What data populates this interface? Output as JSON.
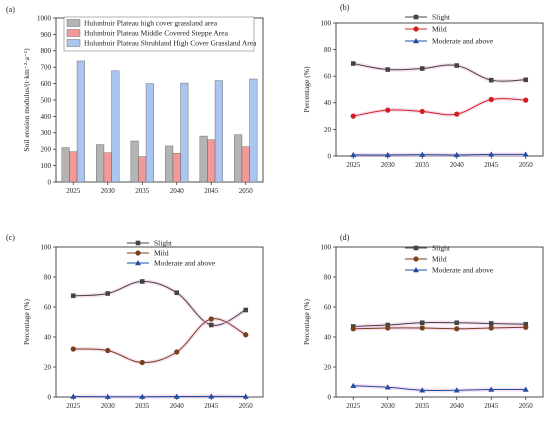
{
  "chart_data": [
    {
      "panel": "(a)",
      "type": "bar",
      "categories": [
        "2025",
        "2030",
        "2035",
        "2040",
        "2045",
        "2050"
      ],
      "ylabel": "Soil erosion modulus/(t·km⁻²·a⁻¹)",
      "ylim": [
        0,
        1000
      ],
      "yticks": [
        "0",
        "100",
        "200",
        "300",
        "400",
        "500",
        "600",
        "700",
        "800",
        "900",
        "1000"
      ],
      "legend_position": "top-left",
      "series": [
        {
          "name": "Hulunbuir Plateau high cover grassland area",
          "color": "#b4b4b4",
          "values": [
            210,
            228,
            250,
            220,
            280,
            288
          ]
        },
        {
          "name": "Hulunbuir Plateau Middle Covered Steppe Area",
          "color": "#f29a9a",
          "values": [
            185,
            178,
            155,
            175,
            258,
            215
          ]
        },
        {
          "name": "Hulunbuir Plateau Shrubland High Cover Grassland Area",
          "color": "#a9c5f0",
          "values": [
            738,
            678,
            600,
            603,
            618,
            628
          ]
        }
      ]
    },
    {
      "panel": "(b)",
      "type": "line",
      "x": [
        "2025",
        "2030",
        "2035",
        "2040",
        "2045",
        "2050"
      ],
      "ylabel": "Percentage (%)",
      "ylim": [
        0,
        100
      ],
      "yticks": [
        "0",
        "20",
        "40",
        "60",
        "80",
        "100"
      ],
      "legend_position": "top-right",
      "series": [
        {
          "name": "Slight",
          "color": "#444444",
          "marker": "square",
          "values": [
            69.5,
            65,
            65.8,
            68,
            57,
            57.3
          ]
        },
        {
          "name": "Mild",
          "color": "#d11f1f",
          "marker": "circle",
          "values": [
            30,
            34.5,
            33.5,
            31.5,
            42.5,
            42
          ]
        },
        {
          "name": "Moderate and above",
          "color": "#1f4fa3",
          "marker": "triangle",
          "values": [
            0.8,
            0.8,
            1,
            0.8,
            1.2,
            1.2
          ]
        }
      ]
    },
    {
      "panel": "(c)",
      "type": "line",
      "x": [
        "2025",
        "2030",
        "2035",
        "2040",
        "2045",
        "2050"
      ],
      "ylabel": "Percentage (%)",
      "ylim": [
        0,
        100
      ],
      "yticks": [
        "0",
        "20",
        "40",
        "60",
        "80",
        "100"
      ],
      "legend_position": "top-right",
      "series": [
        {
          "name": "Slight",
          "color": "#444444",
          "marker": "square",
          "values": [
            67.5,
            69,
            77,
            69.5,
            48,
            58
          ]
        },
        {
          "name": "Mild",
          "color": "#7a3f1c",
          "marker": "circle",
          "values": [
            32,
            31,
            23,
            30,
            52,
            41.5
          ]
        },
        {
          "name": "Moderate and above",
          "color": "#1f4fa3",
          "marker": "triangle",
          "values": [
            0.3,
            0.2,
            0.2,
            0.3,
            0.4,
            0.3
          ]
        }
      ]
    },
    {
      "panel": "(d)",
      "type": "line",
      "x": [
        "2025",
        "2030",
        "2035",
        "2040",
        "2045",
        "2050"
      ],
      "ylabel": "Percentage (%)",
      "ylim": [
        0,
        100
      ],
      "yticks": [
        "0",
        "20",
        "40",
        "60",
        "80",
        "100"
      ],
      "legend_position": "top-right",
      "series": [
        {
          "name": "Slight",
          "color": "#444444",
          "marker": "square",
          "values": [
            47,
            48,
            49.5,
            49.5,
            49,
            48.5
          ]
        },
        {
          "name": "Mild",
          "color": "#7a3f1c",
          "marker": "circle",
          "values": [
            45.5,
            46,
            46,
            45.5,
            46,
            46.5
          ]
        },
        {
          "name": "Moderate and above",
          "color": "#1f4fa3",
          "marker": "triangle",
          "values": [
            7.5,
            6.5,
            4.5,
            4.5,
            5,
            5
          ]
        }
      ]
    }
  ]
}
